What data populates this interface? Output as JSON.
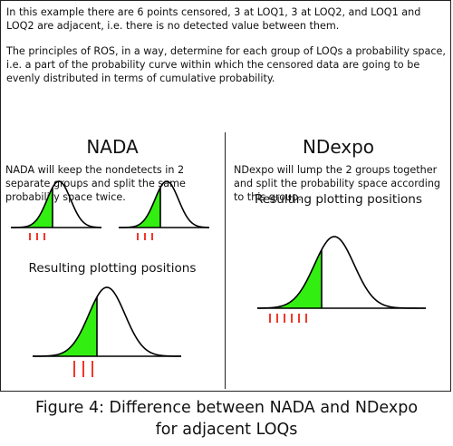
{
  "intro": {
    "paragraph1": "In this example there are 6 points censored, 3 at LOQ1, 3 at LOQ2, and LOQ1 and LOQ2 are adjacent, i.e. there is no detected value between them.",
    "paragraph2": "The principles of ROS, in a way, determine for each group of LOQs a probability space, i.e. a part of the probability curve within which the censored data are going to be evenly distributed in terms of cumulative probability."
  },
  "left_panel": {
    "heading": "NADA",
    "description": "NADA will keep the nondetects in 2 separate groups and split the same probability space twice.",
    "result_label": "Resulting plotting positions"
  },
  "right_panel": {
    "heading": "NDexpo",
    "description": "NDexpo will lump the 2 groups together and  split the probability space according to this group.",
    "result_label": "Resulting plotting positions"
  },
  "caption": {
    "line1": "Figure 4: Difference between NADA and NDexpo",
    "line2": "for adjacent LOQs"
  },
  "colors": {
    "fill": "#33ee11",
    "tick": "#ee2211",
    "line": "#000000"
  },
  "diagrams": [
    {
      "name": "nada-curve-1",
      "ticks": 3
    },
    {
      "name": "nada-curve-2",
      "ticks": 3
    },
    {
      "name": "nada-result-curve",
      "ticks": 3
    },
    {
      "name": "ndexpo-result-curve",
      "ticks": 6
    }
  ]
}
